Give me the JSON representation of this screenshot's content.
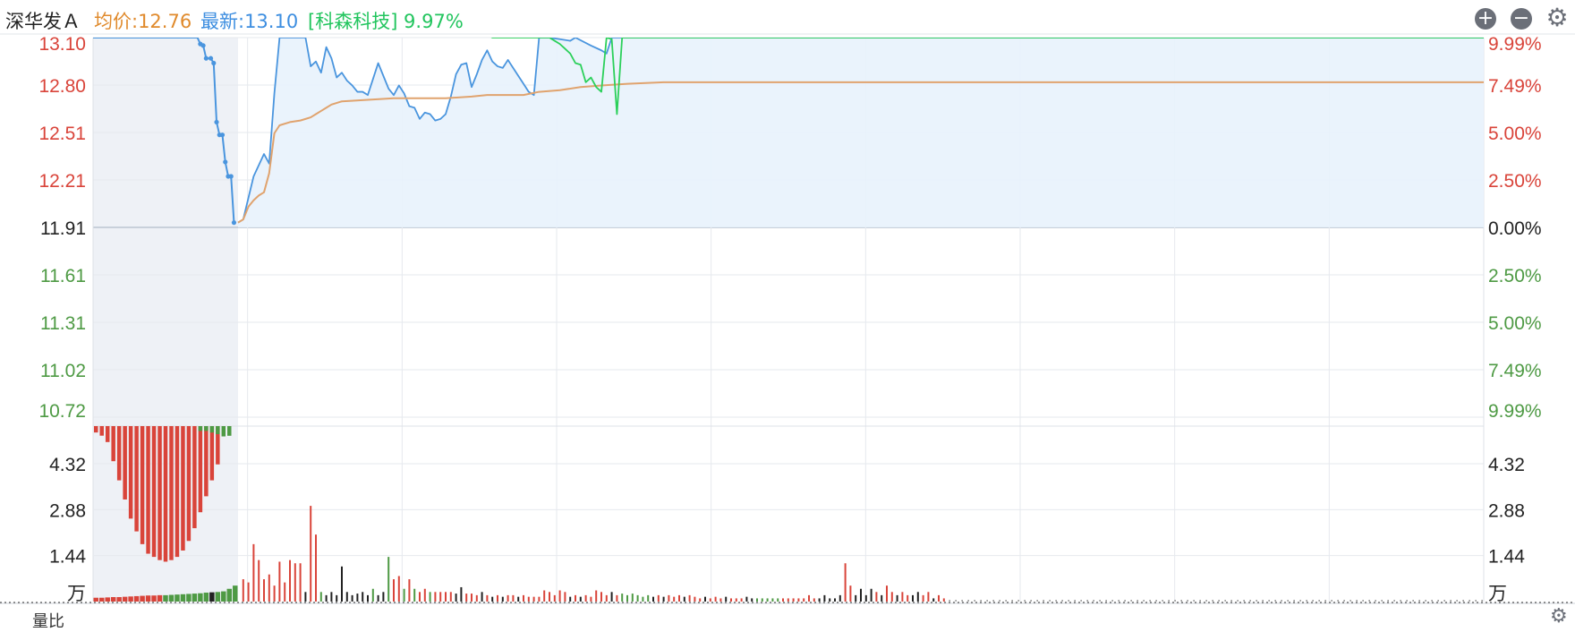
{
  "header": {
    "stock_name": "深华发Ａ",
    "avg_label": "均价:12.76",
    "last_label": "最新:13.10",
    "compare_label": "[科森科技] 9.97%",
    "zoom_in_icon": "plus-circle-icon",
    "zoom_out_icon": "minus-circle-icon",
    "settings_icon": "gear-icon",
    "zoom_in_glyph": "+",
    "zoom_out_glyph": "−",
    "settings_glyph": "⚙"
  },
  "bottom": {
    "label": "量比"
  },
  "colors": {
    "up": "#d9443a",
    "down": "#4e9a44",
    "neutral": "#222222",
    "price_line": "#4a95de",
    "avg_line": "#e0a36e",
    "compare_line": "#2bd05a",
    "area_fill": "#e8f2fc"
  },
  "chart_data": {
    "type": "line",
    "price_axis": {
      "ticks": [
        "13.10",
        "12.80",
        "12.51",
        "12.21",
        "11.91",
        "11.61",
        "11.31",
        "11.02",
        "10.72"
      ],
      "ylim": [
        10.72,
        13.1
      ],
      "prev_close": 11.91
    },
    "percent_axis": {
      "ticks": [
        "9.99%",
        "7.49%",
        "5.00%",
        "2.50%",
        "0.00%",
        "2.50%",
        "5.00%",
        "7.49%",
        "9.99%"
      ]
    },
    "volume_axis": {
      "ticks": [
        "4.32",
        "2.88",
        "1.44"
      ],
      "unit": "万",
      "ylim": [
        0,
        5.5
      ]
    },
    "x_total_minutes": 240,
    "pre_market_points": 25,
    "pre_market_price": [
      [
        0,
        13.1
      ],
      [
        18,
        13.1
      ],
      [
        18.5,
        13.06
      ],
      [
        19,
        13.05
      ],
      [
        19.5,
        12.97
      ],
      [
        20.3,
        12.97
      ],
      [
        20.8,
        12.94
      ],
      [
        21.3,
        12.57
      ],
      [
        21.8,
        12.49
      ],
      [
        22.3,
        12.49
      ],
      [
        22.8,
        12.32
      ],
      [
        23.3,
        12.23
      ],
      [
        23.8,
        12.23
      ],
      [
        24.3,
        11.94
      ]
    ],
    "series": [
      {
        "name": "最新",
        "values": [
          [
            0,
            11.94
          ],
          [
            1,
            11.96
          ],
          [
            3,
            12.23
          ],
          [
            5,
            12.37
          ],
          [
            6,
            12.31
          ],
          [
            7,
            12.75
          ],
          [
            8,
            13.1
          ],
          [
            13,
            13.1
          ],
          [
            14,
            12.92
          ],
          [
            15,
            12.95
          ],
          [
            16,
            12.88
          ],
          [
            17,
            13.04
          ],
          [
            18,
            12.97
          ],
          [
            19,
            12.85
          ],
          [
            20,
            12.88
          ],
          [
            21,
            12.83
          ],
          [
            22,
            12.8
          ],
          [
            23,
            12.76
          ],
          [
            24,
            12.76
          ],
          [
            25,
            12.74
          ],
          [
            26,
            12.84
          ],
          [
            27,
            12.94
          ],
          [
            28,
            12.86
          ],
          [
            29,
            12.78
          ],
          [
            30,
            12.74
          ],
          [
            31,
            12.8
          ],
          [
            32,
            12.75
          ],
          [
            33,
            12.67
          ],
          [
            34,
            12.66
          ],
          [
            35,
            12.59
          ],
          [
            36,
            12.63
          ],
          [
            37,
            12.62
          ],
          [
            38,
            12.58
          ],
          [
            39,
            12.59
          ],
          [
            40,
            12.62
          ],
          [
            41,
            12.73
          ],
          [
            42,
            12.87
          ],
          [
            43,
            12.93
          ],
          [
            44,
            12.94
          ],
          [
            45,
            12.79
          ],
          [
            46,
            12.87
          ],
          [
            47,
            12.96
          ],
          [
            48,
            13.02
          ],
          [
            49,
            12.95
          ],
          [
            50,
            12.92
          ],
          [
            51,
            12.91
          ],
          [
            52,
            12.96
          ],
          [
            53,
            12.91
          ],
          [
            54,
            12.86
          ],
          [
            55,
            12.81
          ],
          [
            56,
            12.76
          ],
          [
            57,
            12.74
          ],
          [
            58,
            13.1
          ],
          [
            60,
            13.1
          ],
          [
            64,
            13.08
          ],
          [
            65,
            13.1
          ],
          [
            68,
            13.05
          ],
          [
            70,
            13.02
          ],
          [
            71,
            13.0
          ],
          [
            72,
            13.1
          ],
          [
            240,
            13.1
          ]
        ]
      },
      {
        "name": "均价",
        "values": [
          [
            0,
            11.94
          ],
          [
            1,
            11.96
          ],
          [
            2,
            12.04
          ],
          [
            3,
            12.08
          ],
          [
            4,
            12.11
          ],
          [
            5,
            12.13
          ],
          [
            6,
            12.25
          ],
          [
            7,
            12.5
          ],
          [
            8,
            12.55
          ],
          [
            10,
            12.57
          ],
          [
            12,
            12.58
          ],
          [
            13,
            12.59
          ],
          [
            14,
            12.6
          ],
          [
            15,
            12.62
          ],
          [
            16,
            12.64
          ],
          [
            17,
            12.66
          ],
          [
            18,
            12.68
          ],
          [
            20,
            12.7
          ],
          [
            25,
            12.71
          ],
          [
            30,
            12.72
          ],
          [
            35,
            12.72
          ],
          [
            40,
            12.72
          ],
          [
            45,
            12.73
          ],
          [
            48,
            12.74
          ],
          [
            52,
            12.74
          ],
          [
            55,
            12.74
          ],
          [
            58,
            12.76
          ],
          [
            62,
            12.77
          ],
          [
            66,
            12.79
          ],
          [
            70,
            12.8
          ],
          [
            75,
            12.81
          ],
          [
            82,
            12.82
          ],
          [
            240,
            12.82
          ]
        ]
      },
      {
        "name": "科森科技",
        "values": [
          [
            0,
            13.3
          ],
          [
            46,
            13.3
          ],
          [
            47,
            13.2
          ],
          [
            48,
            13.12
          ],
          [
            49,
            13.1
          ],
          [
            60,
            13.1
          ],
          [
            61,
            13.08
          ],
          [
            62,
            13.06
          ],
          [
            63,
            13.03
          ],
          [
            64,
            13.0
          ],
          [
            65,
            12.94
          ],
          [
            66,
            12.93
          ],
          [
            67,
            12.82
          ],
          [
            68,
            12.85
          ],
          [
            69,
            12.79
          ],
          [
            70,
            12.76
          ],
          [
            71,
            13.1
          ],
          [
            72,
            13.09
          ],
          [
            73,
            12.62
          ],
          [
            74,
            13.1
          ],
          [
            240,
            13.1
          ]
        ]
      }
    ],
    "pre_market_volume_top": [
      5.3,
      5.2,
      5.0,
      4.4,
      3.8,
      3.2,
      2.6,
      2.2,
      1.8,
      1.5,
      1.4,
      1.3,
      1.25,
      1.3,
      1.4,
      1.6,
      1.9,
      2.3,
      2.8,
      3.3,
      3.8,
      4.3,
      5.5,
      5.5,
      5.5
    ],
    "pre_market_volume_bottom": [
      [
        0.12,
        "up"
      ],
      [
        0.12,
        "up"
      ],
      [
        0.13,
        "up"
      ],
      [
        0.14,
        "up"
      ],
      [
        0.14,
        "up"
      ],
      [
        0.15,
        "up"
      ],
      [
        0.16,
        "up"
      ],
      [
        0.17,
        "up"
      ],
      [
        0.18,
        "up"
      ],
      [
        0.19,
        "up"
      ],
      [
        0.19,
        "up"
      ],
      [
        0.2,
        "up"
      ],
      [
        0.2,
        "down"
      ],
      [
        0.21,
        "down"
      ],
      [
        0.22,
        "down"
      ],
      [
        0.23,
        "down"
      ],
      [
        0.24,
        "down"
      ],
      [
        0.25,
        "down"
      ],
      [
        0.26,
        "down"
      ],
      [
        0.28,
        "down"
      ],
      [
        0.29,
        "neutral"
      ],
      [
        0.3,
        "down"
      ],
      [
        0.32,
        "down"
      ],
      [
        0.4,
        "down"
      ],
      [
        0.5,
        "down"
      ]
    ],
    "pre_market_ratio_tail": [
      0.15,
      0.15,
      0.2,
      0.25,
      0.32,
      0.3
    ],
    "volume": [
      [
        1,
        0.7,
        "up"
      ],
      [
        2,
        0.6,
        "up"
      ],
      [
        3,
        1.8,
        "up"
      ],
      [
        4,
        1.3,
        "up"
      ],
      [
        5,
        0.7,
        "up"
      ],
      [
        6,
        0.85,
        "up"
      ],
      [
        7,
        0.5,
        "up"
      ],
      [
        8,
        1.25,
        "up"
      ],
      [
        9,
        0.6,
        "up"
      ],
      [
        10,
        1.3,
        "up"
      ],
      [
        11,
        1.2,
        "up"
      ],
      [
        12,
        1.2,
        "up"
      ],
      [
        13,
        0.3,
        "neutral"
      ],
      [
        14,
        3.0,
        "up"
      ],
      [
        15,
        2.1,
        "up"
      ],
      [
        16,
        0.3,
        "down"
      ],
      [
        17,
        0.2,
        "neutral"
      ],
      [
        18,
        0.3,
        "neutral"
      ],
      [
        19,
        0.2,
        "neutral"
      ],
      [
        20,
        1.1,
        "neutral"
      ],
      [
        21,
        0.3,
        "neutral"
      ],
      [
        22,
        0.2,
        "neutral"
      ],
      [
        23,
        0.25,
        "neutral"
      ],
      [
        24,
        0.3,
        "neutral"
      ],
      [
        25,
        0.2,
        "neutral"
      ],
      [
        26,
        0.4,
        "down"
      ],
      [
        27,
        0.2,
        "neutral"
      ],
      [
        28,
        0.3,
        "neutral"
      ],
      [
        29,
        1.4,
        "down"
      ],
      [
        30,
        0.7,
        "up"
      ],
      [
        31,
        0.8,
        "up"
      ],
      [
        32,
        0.4,
        "down"
      ],
      [
        33,
        0.7,
        "up"
      ],
      [
        34,
        0.4,
        "down"
      ],
      [
        35,
        0.3,
        "up"
      ],
      [
        36,
        0.4,
        "up"
      ],
      [
        37,
        0.3,
        "down"
      ],
      [
        38,
        0.3,
        "up"
      ],
      [
        39,
        0.3,
        "up"
      ],
      [
        40,
        0.3,
        "up"
      ],
      [
        41,
        0.3,
        "up"
      ],
      [
        42,
        0.25,
        "neutral"
      ],
      [
        43,
        0.45,
        "neutral"
      ],
      [
        44,
        0.25,
        "up"
      ],
      [
        45,
        0.25,
        "up"
      ],
      [
        46,
        0.2,
        "up"
      ],
      [
        47,
        0.3,
        "neutral"
      ],
      [
        48,
        0.2,
        "up"
      ],
      [
        49,
        0.15,
        "neutral"
      ],
      [
        50,
        0.2,
        "up"
      ],
      [
        51,
        0.15,
        "neutral"
      ],
      [
        52,
        0.2,
        "up"
      ],
      [
        53,
        0.2,
        "up"
      ],
      [
        54,
        0.15,
        "neutral"
      ],
      [
        55,
        0.2,
        "up"
      ],
      [
        56,
        0.15,
        "up"
      ],
      [
        57,
        0.15,
        "up"
      ],
      [
        58,
        0.15,
        "up"
      ],
      [
        59,
        0.35,
        "up"
      ],
      [
        60,
        0.3,
        "up"
      ],
      [
        61,
        0.2,
        "up"
      ],
      [
        62,
        0.35,
        "up"
      ],
      [
        63,
        0.3,
        "up"
      ],
      [
        64,
        0.15,
        "neutral"
      ],
      [
        65,
        0.2,
        "up"
      ],
      [
        66,
        0.15,
        "neutral"
      ],
      [
        67,
        0.2,
        "up"
      ],
      [
        68,
        0.15,
        "up"
      ],
      [
        69,
        0.35,
        "up"
      ],
      [
        70,
        0.3,
        "up"
      ],
      [
        71,
        0.2,
        "up"
      ],
      [
        72,
        0.3,
        "neutral"
      ],
      [
        73,
        0.2,
        "up"
      ],
      [
        74,
        0.25,
        "down"
      ],
      [
        75,
        0.2,
        "down"
      ],
      [
        76,
        0.25,
        "down"
      ],
      [
        77,
        0.2,
        "down"
      ],
      [
        78,
        0.15,
        "down"
      ],
      [
        79,
        0.2,
        "down"
      ],
      [
        80,
        0.15,
        "neutral"
      ],
      [
        81,
        0.2,
        "up"
      ],
      [
        82,
        0.15,
        "neutral"
      ],
      [
        83,
        0.2,
        "up"
      ],
      [
        84,
        0.15,
        "up"
      ],
      [
        85,
        0.2,
        "up"
      ],
      [
        86,
        0.15,
        "neutral"
      ],
      [
        87,
        0.2,
        "up"
      ],
      [
        88,
        0.15,
        "up"
      ],
      [
        89,
        0.1,
        "up"
      ],
      [
        90,
        0.15,
        "neutral"
      ],
      [
        91,
        0.1,
        "up"
      ],
      [
        92,
        0.15,
        "up"
      ],
      [
        93,
        0.1,
        "up"
      ],
      [
        94,
        0.15,
        "neutral"
      ],
      [
        95,
        0.1,
        "up"
      ],
      [
        96,
        0.1,
        "up"
      ],
      [
        97,
        0.1,
        "up"
      ],
      [
        98,
        0.15,
        "neutral"
      ],
      [
        99,
        0.1,
        "neutral"
      ],
      [
        100,
        0.1,
        "down"
      ],
      [
        101,
        0.1,
        "down"
      ],
      [
        102,
        0.1,
        "down"
      ],
      [
        103,
        0.1,
        "down"
      ],
      [
        104,
        0.1,
        "down"
      ],
      [
        105,
        0.1,
        "up"
      ],
      [
        106,
        0.1,
        "up"
      ],
      [
        107,
        0.1,
        "up"
      ],
      [
        108,
        0.1,
        "up"
      ],
      [
        109,
        0.1,
        "up"
      ],
      [
        110,
        0.2,
        "up"
      ],
      [
        111,
        0.1,
        "up"
      ],
      [
        112,
        0.1,
        "neutral"
      ],
      [
        113,
        0.2,
        "neutral"
      ],
      [
        114,
        0.1,
        "neutral"
      ],
      [
        115,
        0.1,
        "neutral"
      ],
      [
        116,
        0.2,
        "neutral"
      ],
      [
        117,
        1.2,
        "up"
      ],
      [
        118,
        0.5,
        "up"
      ],
      [
        119,
        0.2,
        "neutral"
      ],
      [
        120,
        0.4,
        "neutral"
      ],
      [
        121,
        0.2,
        "neutral"
      ],
      [
        122,
        0.4,
        "neutral"
      ],
      [
        123,
        0.3,
        "up"
      ],
      [
        124,
        0.2,
        "neutral"
      ],
      [
        125,
        0.5,
        "up"
      ],
      [
        126,
        0.3,
        "up"
      ],
      [
        127,
        0.2,
        "neutral"
      ],
      [
        128,
        0.3,
        "up"
      ],
      [
        129,
        0.2,
        "up"
      ],
      [
        130,
        0.2,
        "neutral"
      ],
      [
        131,
        0.3,
        "neutral"
      ],
      [
        132,
        0.2,
        "up"
      ],
      [
        133,
        0.3,
        "up"
      ],
      [
        134,
        0.1,
        "neutral"
      ],
      [
        135,
        0.2,
        "up"
      ],
      [
        136,
        0.1,
        "up"
      ]
    ]
  }
}
